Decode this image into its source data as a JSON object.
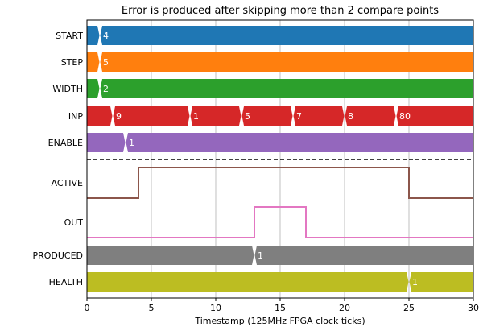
{
  "chart_data": {
    "type": "timing",
    "title": "Error is produced after skipping more than 2 compare points",
    "xlabel": "Timestamp (125MHz FPGA clock ticks)",
    "xlim": [
      0,
      30
    ],
    "xticks": [
      0,
      5,
      10,
      15,
      20,
      25,
      30
    ],
    "grid": true,
    "signals": [
      {
        "name": "START",
        "kind": "bus",
        "color": "#1f77b4",
        "transitions": [
          {
            "t": 1,
            "label": "4"
          }
        ]
      },
      {
        "name": "STEP",
        "kind": "bus",
        "color": "#ff7f0e",
        "transitions": [
          {
            "t": 1,
            "label": "5"
          }
        ]
      },
      {
        "name": "WIDTH",
        "kind": "bus",
        "color": "#2ca02c",
        "transitions": [
          {
            "t": 1,
            "label": "2"
          }
        ]
      },
      {
        "name": "INP",
        "kind": "bus",
        "color": "#d62728",
        "transitions": [
          {
            "t": 2,
            "label": "9"
          },
          {
            "t": 8,
            "label": "1"
          },
          {
            "t": 12,
            "label": "5"
          },
          {
            "t": 16,
            "label": "7"
          },
          {
            "t": 20,
            "label": "8"
          },
          {
            "t": 24,
            "label": "80"
          }
        ]
      },
      {
        "name": "ENABLE",
        "kind": "bus",
        "color": "#9467bd",
        "transitions": [
          {
            "t": 3,
            "label": "1"
          }
        ]
      },
      {
        "name": "ACTIVE",
        "kind": "bit",
        "color": "#8c564b",
        "high": [
          [
            4,
            25
          ]
        ]
      },
      {
        "name": "OUT",
        "kind": "bit",
        "color": "#e377c2",
        "high": [
          [
            13,
            17
          ]
        ]
      },
      {
        "name": "PRODUCED",
        "kind": "bus",
        "color": "#7f7f7f",
        "transitions": [
          {
            "t": 13,
            "label": "1"
          }
        ]
      },
      {
        "name": "HEALTH",
        "kind": "bus",
        "color": "#bcbd22",
        "transitions": [
          {
            "t": 25,
            "label": "1"
          }
        ]
      }
    ],
    "separator_after": "ENABLE"
  }
}
